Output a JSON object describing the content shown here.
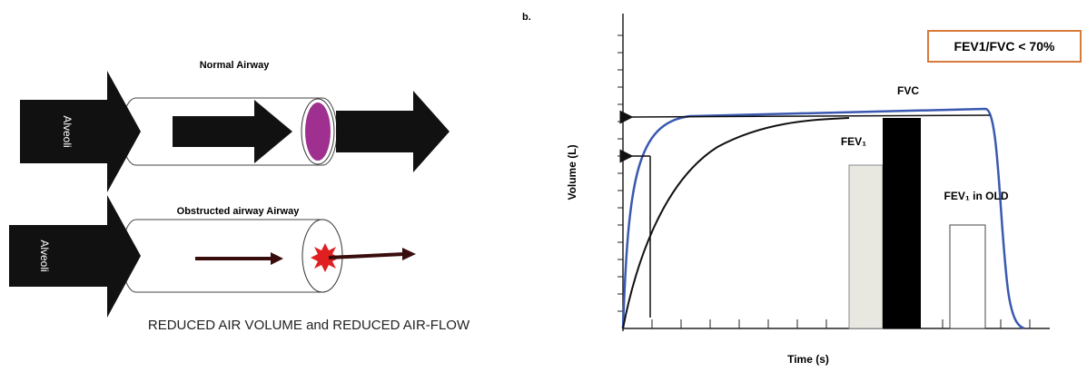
{
  "panel_a": {
    "normal_title": "Normal Airway",
    "normal_alveoli": "Alveoli",
    "obstructed_title": "Obstructed airway Airway",
    "obstructed_alveoli": "Alveoli",
    "caption": "REDUCED AIR  VOLUME and REDUCED AIR-FLOW"
  },
  "panel_b": {
    "label": "b.",
    "ratio_box": "FEV1/FVC < 70%",
    "fvc": "FVC",
    "fev1": "FEV₁",
    "fev1_old": "FEV₁ in OLD",
    "y_axis": "Volume  (L)",
    "x_axis": "Time (s)"
  }
}
